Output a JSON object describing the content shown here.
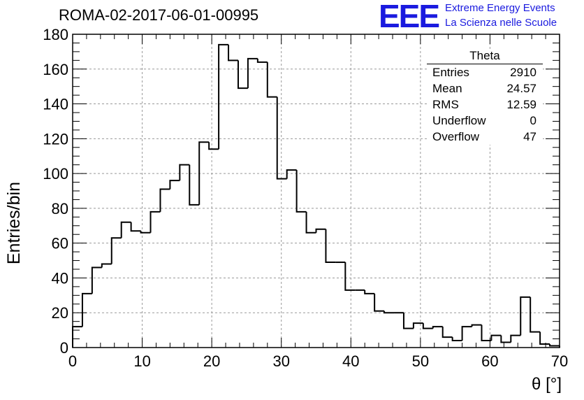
{
  "chart_data": {
    "type": "histogram",
    "title": "ROMA-02-2017-06-01-00995",
    "xlabel": "θ [°]",
    "ylabel": "Entries/bin",
    "xlim": [
      0,
      70
    ],
    "ylim": [
      0,
      180
    ],
    "bin_width": 1.4,
    "x_ticks": [
      0,
      10,
      20,
      30,
      40,
      50,
      60,
      70
    ],
    "y_ticks": [
      0,
      20,
      40,
      60,
      80,
      100,
      120,
      140,
      160,
      180
    ],
    "grid": true,
    "values": [
      12,
      31,
      46,
      48,
      63,
      72,
      67,
      66,
      78,
      91,
      96,
      105,
      82,
      118,
      114,
      174,
      165,
      149,
      166,
      164,
      144,
      97,
      102,
      78,
      66,
      68,
      49,
      49,
      33,
      33,
      31,
      21,
      20,
      20,
      11,
      14,
      11,
      12,
      6,
      4,
      12,
      13,
      4,
      7,
      3,
      7,
      29,
      9,
      2,
      1
    ]
  },
  "stats": {
    "title": "Theta",
    "rows": [
      {
        "label": "Entries",
        "value": "2910"
      },
      {
        "label": "Mean",
        "value": "24.57"
      },
      {
        "label": "RMS",
        "value": "12.59"
      },
      {
        "label": "Underflow",
        "value": "0"
      },
      {
        "label": "Overflow",
        "value": "47"
      }
    ]
  },
  "logo": {
    "mark": "EEE",
    "line1": "Extreme Energy Events",
    "line2": "La Scienza nelle Scuole",
    "color": "#1a1adf"
  }
}
